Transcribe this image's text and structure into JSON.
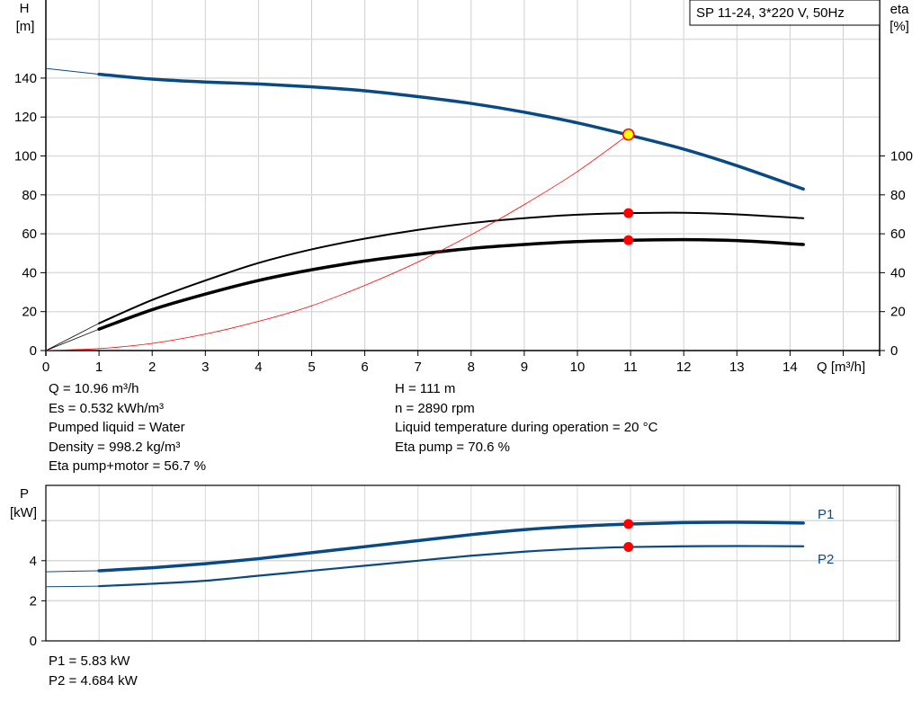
{
  "chart_data": [
    {
      "type": "line",
      "title": "SP 11-24, 3*220 V, 50Hz",
      "xlabel": "Q [m³/h]",
      "ylabel_left": [
        "H",
        "[m]"
      ],
      "ylabel_right": [
        "eta",
        "[%]"
      ],
      "xlim": [
        0,
        15.7
      ],
      "ylim_left": [
        0,
        180
      ],
      "ylim_right": [
        0,
        180
      ],
      "x_ticks": [
        0,
        1,
        2,
        3,
        4,
        5,
        6,
        7,
        8,
        9,
        10,
        11,
        12,
        13,
        14
      ],
      "y_ticks_left": [
        0,
        20,
        40,
        60,
        80,
        100,
        120,
        140
      ],
      "y_ticks_right": [
        0,
        20,
        40,
        60,
        80,
        100
      ],
      "grid": true,
      "colors": {
        "head": "#0a4a84",
        "efficiency": "#000000",
        "system": "#ff0000",
        "marker": "#ff0000",
        "duty_marker_fill": "#ffff00"
      },
      "series": [
        {
          "key": "head",
          "axis": "left",
          "x": [
            0,
            1,
            2,
            3,
            4,
            5,
            6,
            7,
            8,
            9,
            10,
            11,
            12,
            13,
            14.25
          ],
          "y": [
            145,
            142,
            139.5,
            138,
            137,
            135.5,
            133.5,
            130.5,
            127,
            122.5,
            117,
            110.5,
            103.5,
            95,
            83
          ]
        },
        {
          "key": "eta_pump",
          "axis": "right",
          "x": [
            0,
            1,
            2,
            3,
            4,
            5,
            6,
            7,
            8,
            9,
            10,
            11,
            12,
            13,
            14.25
          ],
          "y": [
            0,
            14,
            26,
            36,
            45,
            52,
            57.5,
            62,
            65.5,
            68,
            69.8,
            70.6,
            70.8,
            70,
            68
          ]
        },
        {
          "key": "eta_pump_motor",
          "axis": "right",
          "x": [
            0,
            1,
            2,
            3,
            4,
            5,
            6,
            7,
            8,
            9,
            10,
            11,
            12,
            13,
            14.25
          ],
          "y": [
            0,
            11,
            21,
            29,
            36,
            41.5,
            46,
            49.5,
            52.5,
            54.5,
            56,
            56.7,
            57,
            56.5,
            54.5
          ]
        },
        {
          "key": "system_curve",
          "axis": "left",
          "x": [
            0,
            1,
            2,
            3,
            4,
            5,
            6,
            7,
            8,
            9,
            10,
            10.96
          ],
          "y": [
            0,
            1,
            3.7,
            8.5,
            15,
            23,
            33.5,
            45.5,
            59.5,
            75,
            92,
            111
          ]
        }
      ],
      "duty_point": {
        "Q": 10.96,
        "H": 111,
        "eta_pump": 70.6,
        "eta_pump_motor": 56.7
      }
    },
    {
      "type": "line",
      "ylabel": [
        "P",
        "[kW]"
      ],
      "xlim": [
        0,
        16
      ],
      "ylim": [
        0,
        7.6
      ],
      "y_ticks": [
        0,
        2,
        4
      ],
      "y_tick_marks": [
        0,
        2,
        4,
        6
      ],
      "grid": true,
      "colors": {
        "line": "#0a4a84",
        "marker": "#ff0000"
      },
      "series": [
        {
          "name": "P1",
          "x": [
            0,
            1,
            2,
            3,
            4,
            5,
            6,
            7,
            8,
            9,
            10,
            11,
            12,
            13,
            14.25
          ],
          "y": [
            3.45,
            3.5,
            3.65,
            3.85,
            4.1,
            4.4,
            4.7,
            5.0,
            5.3,
            5.55,
            5.72,
            5.83,
            5.9,
            5.92,
            5.88
          ]
        },
        {
          "name": "P2",
          "x": [
            0,
            1,
            2,
            3,
            4,
            5,
            6,
            7,
            8,
            9,
            10,
            11,
            12,
            13,
            14.25
          ],
          "y": [
            2.7,
            2.73,
            2.85,
            3.0,
            3.25,
            3.5,
            3.75,
            4.0,
            4.25,
            4.45,
            4.6,
            4.684,
            4.72,
            4.73,
            4.72
          ]
        }
      ],
      "duty_point": {
        "Q": 10.96,
        "P1": 5.83,
        "P2": 4.684
      }
    }
  ],
  "info_left": [
    "Q = 10.96 m³/h",
    "Es = 0.532 kWh/m³",
    "Pumped liquid = Water",
    "Density = 998.2 kg/m³",
    "Eta pump+motor = 56.7 %"
  ],
  "info_right": [
    "H = 111 m",
    "n = 2890 rpm",
    "Liquid temperature during operation = 20 °C",
    "Eta pump = 70.6 %"
  ],
  "power_info": [
    "P1 = 5.83 kW",
    "P2 = 4.684 kW"
  ]
}
